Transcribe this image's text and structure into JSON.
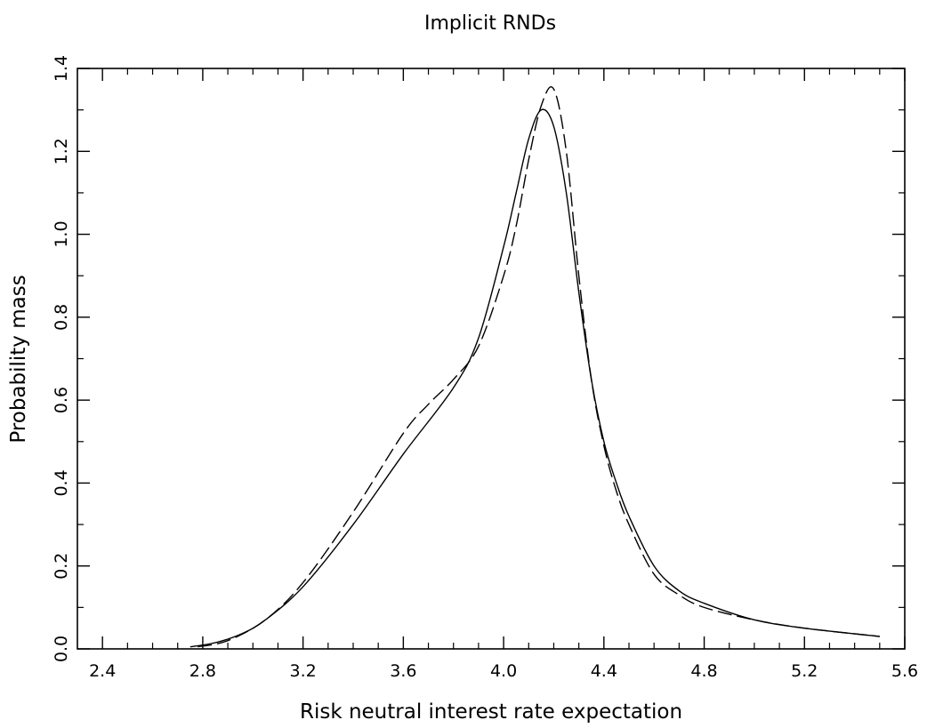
{
  "chart_data": {
    "type": "line",
    "title": "Implicit RNDs",
    "xlabel": "Risk neutral interest rate expectation",
    "ylabel": "Probability mass",
    "xlim": [
      2.3,
      5.6
    ],
    "ylim": [
      0.0,
      1.4
    ],
    "x_ticks": [
      "2.4",
      "2.8",
      "3.2",
      "3.6",
      "4.0",
      "4.4",
      "4.8",
      "5.2",
      "5.6"
    ],
    "y_ticks": [
      "0.0",
      "0.2",
      "0.4",
      "0.6",
      "0.8",
      "1.0",
      "1.2",
      "1.4"
    ],
    "grid": false,
    "legend": "none",
    "series": [
      {
        "style": "solid",
        "x": [
          2.75,
          2.85,
          2.95,
          3.05,
          3.2,
          3.4,
          3.6,
          3.8,
          3.9,
          4.0,
          4.05,
          4.1,
          4.15,
          4.2,
          4.25,
          4.3,
          4.35,
          4.4,
          4.45,
          4.5,
          4.6,
          4.7,
          4.8,
          5.0,
          5.2,
          5.5
        ],
        "y": [
          0.005,
          0.015,
          0.035,
          0.07,
          0.15,
          0.3,
          0.47,
          0.63,
          0.75,
          0.97,
          1.1,
          1.23,
          1.3,
          1.26,
          1.1,
          0.86,
          0.65,
          0.5,
          0.4,
          0.32,
          0.2,
          0.14,
          0.11,
          0.07,
          0.05,
          0.03
        ]
      },
      {
        "style": "dashed",
        "x": [
          2.78,
          2.9,
          3.05,
          3.2,
          3.4,
          3.6,
          3.7,
          3.8,
          3.9,
          4.0,
          4.05,
          4.1,
          4.15,
          4.2,
          4.25,
          4.3,
          4.35,
          4.4,
          4.45,
          4.5,
          4.6,
          4.7,
          4.8,
          5.0,
          5.2,
          5.5
        ],
        "y": [
          0.005,
          0.02,
          0.07,
          0.16,
          0.33,
          0.52,
          0.59,
          0.65,
          0.73,
          0.9,
          1.02,
          1.18,
          1.31,
          1.35,
          1.2,
          0.9,
          0.65,
          0.49,
          0.38,
          0.3,
          0.18,
          0.13,
          0.1,
          0.07,
          0.05,
          0.03
        ]
      }
    ]
  }
}
